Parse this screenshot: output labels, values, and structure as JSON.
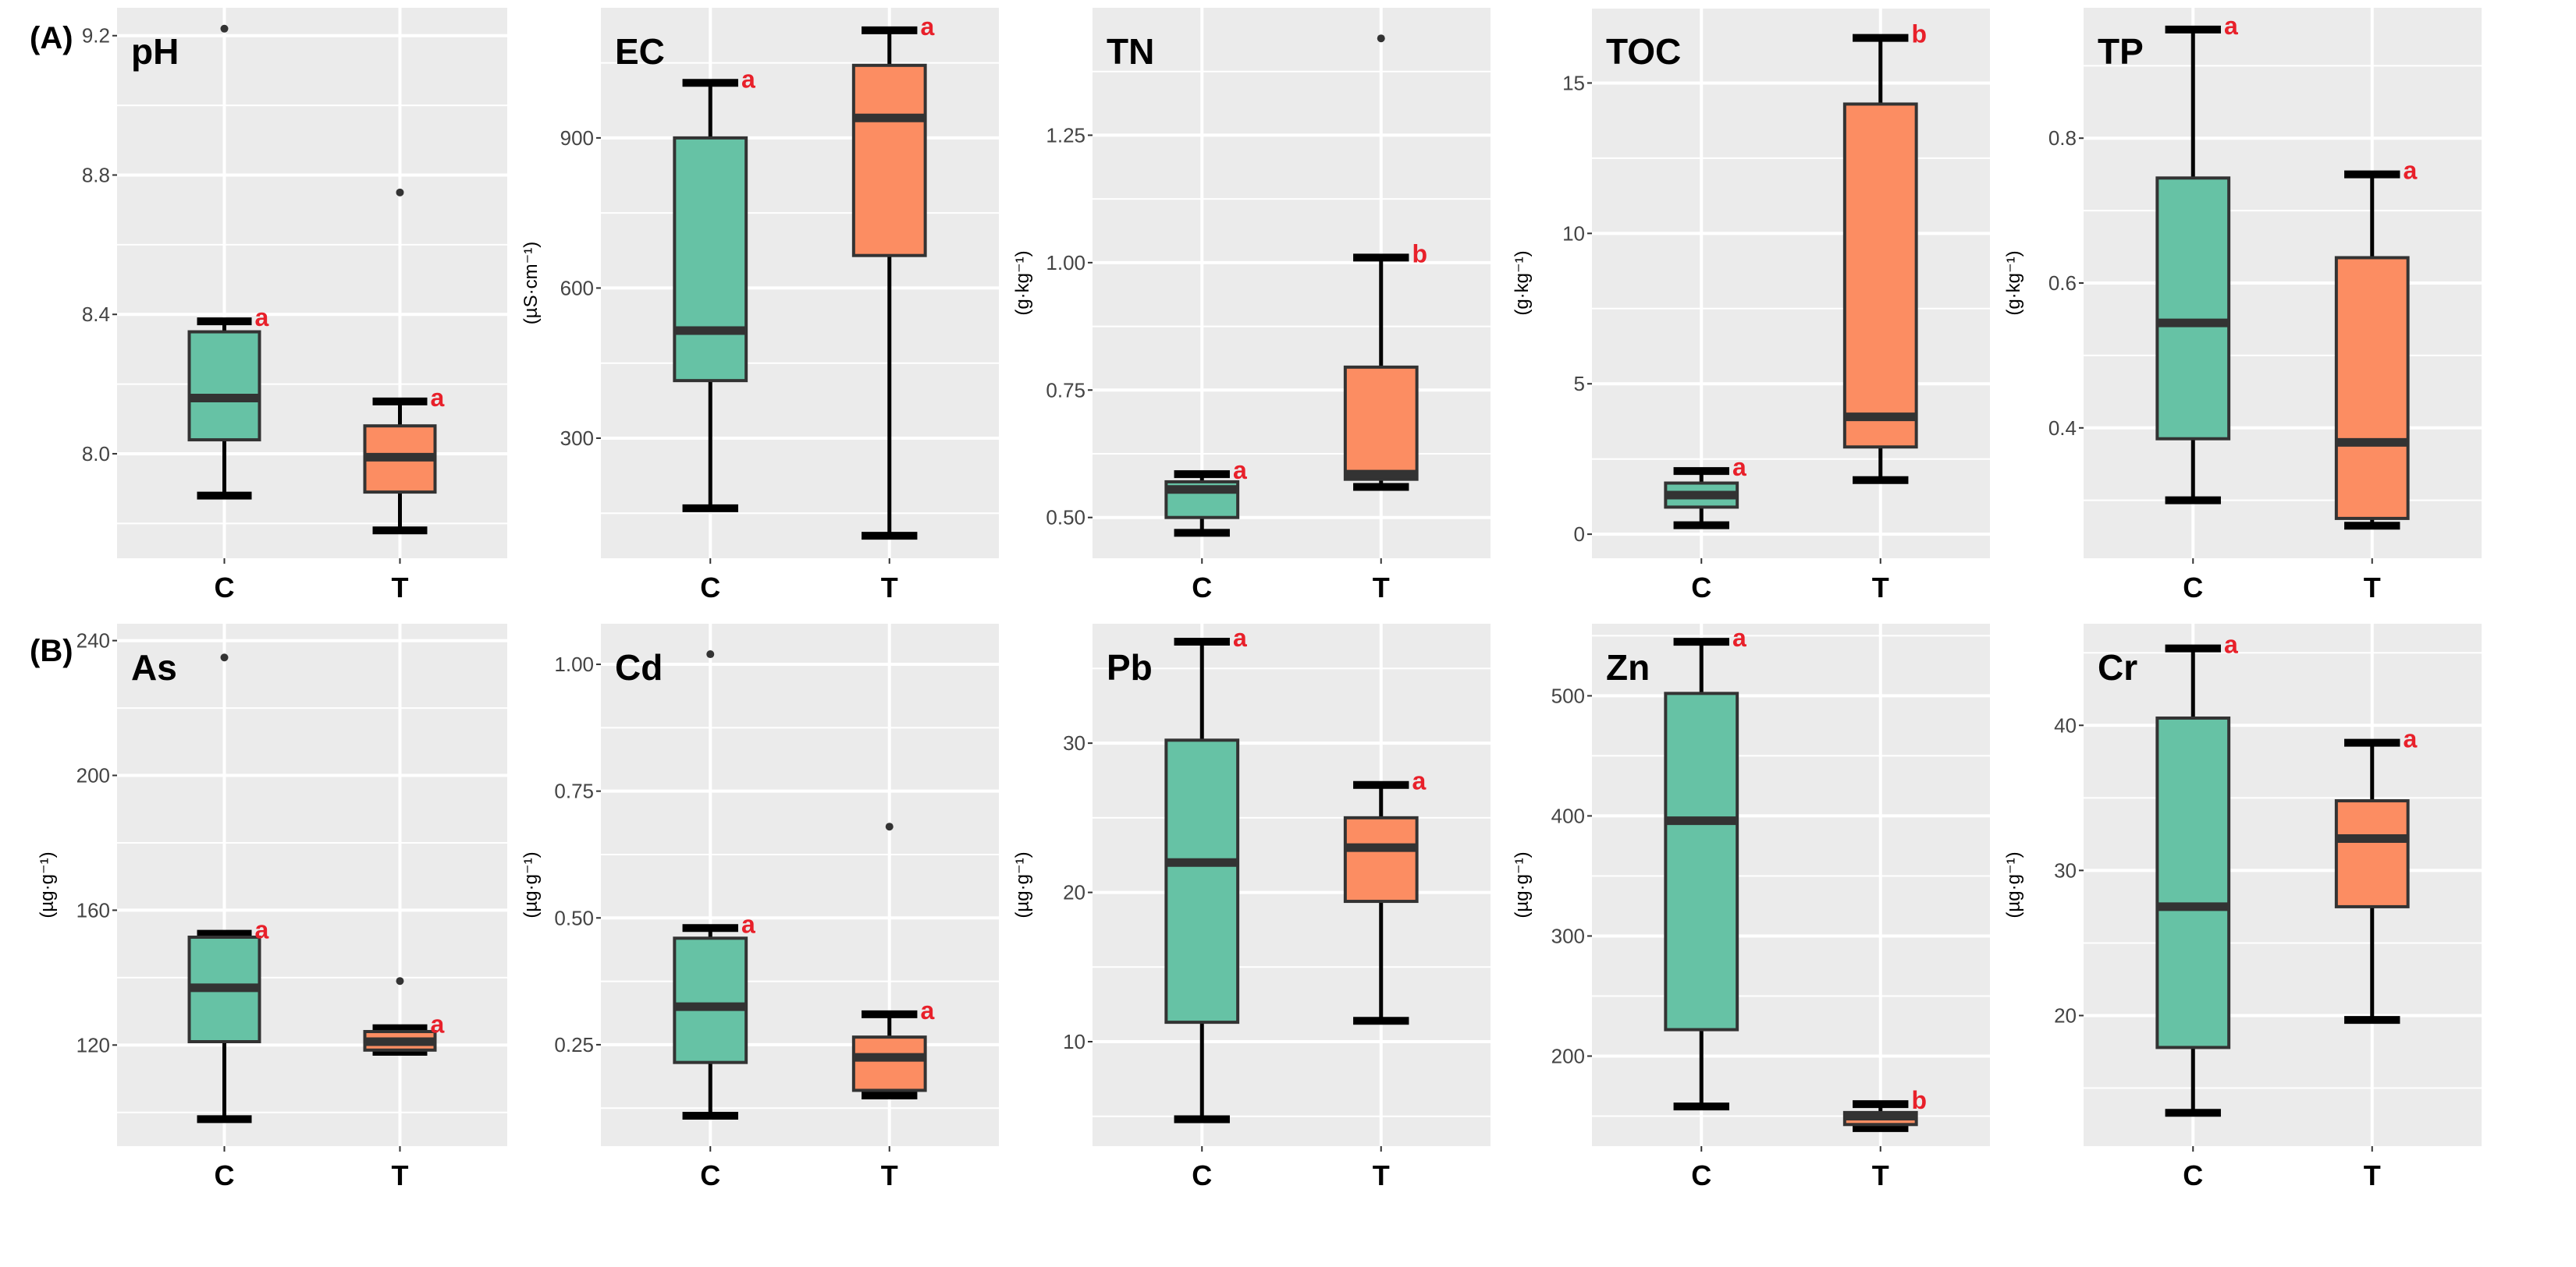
{
  "chart_data": {
    "type": "box",
    "row_labels": [
      "(A)",
      "(B)"
    ],
    "colors": {
      "C": "#66C2A5",
      "T": "#FC8D62",
      "panel_bg": "#EBEBEB",
      "letter": "#E8202A"
    },
    "categories": [
      "C",
      "T"
    ],
    "panels": [
      {
        "title": "pH",
        "ylabel": "",
        "ylim": [
          7.7,
          9.28
        ],
        "ticks": [
          "8.0",
          "8.4",
          "8.8",
          "9.2"
        ],
        "groups": [
          {
            "name": "C",
            "min": 7.88,
            "q1": 8.04,
            "median": 8.16,
            "q3": 8.35,
            "max": 8.38,
            "outliers": [
              9.22
            ],
            "letter": "a"
          },
          {
            "name": "T",
            "min": 7.78,
            "q1": 7.89,
            "median": 7.99,
            "q3": 8.08,
            "max": 8.15,
            "outliers": [
              8.75
            ],
            "letter": "a"
          }
        ]
      },
      {
        "title": "EC",
        "ylabel": "(µS·cm⁻¹)",
        "ylim": [
          60,
          1160
        ],
        "ticks": [
          "300",
          "600",
          "900"
        ],
        "groups": [
          {
            "name": "C",
            "min": 160,
            "q1": 415,
            "median": 515,
            "q3": 900,
            "max": 1010,
            "outliers": [],
            "letter": "a"
          },
          {
            "name": "T",
            "min": 105,
            "q1": 665,
            "median": 940,
            "q3": 1045,
            "max": 1115,
            "outliers": [],
            "letter": "a"
          }
        ]
      },
      {
        "title": "TN",
        "ylabel": "(g·kg⁻¹)",
        "ylim": [
          0.42,
          1.5
        ],
        "ticks": [
          "0.50",
          "0.75",
          "1.00",
          "1.25"
        ],
        "groups": [
          {
            "name": "C",
            "min": 0.47,
            "q1": 0.5,
            "median": 0.555,
            "q3": 0.57,
            "max": 0.585,
            "outliers": [],
            "letter": "a"
          },
          {
            "name": "T",
            "min": 0.56,
            "q1": 0.575,
            "median": 0.585,
            "q3": 0.795,
            "max": 1.01,
            "outliers": [
              1.44
            ],
            "letter": "b"
          }
        ]
      },
      {
        "title": "TOC",
        "ylabel": "(g·kg⁻¹)",
        "ylim": [
          -0.8,
          17.5
        ],
        "ticks": [
          "0",
          "5",
          "10",
          "15"
        ],
        "groups": [
          {
            "name": "C",
            "min": 0.3,
            "q1": 0.9,
            "median": 1.3,
            "q3": 1.7,
            "max": 2.1,
            "outliers": [],
            "letter": "a"
          },
          {
            "name": "T",
            "min": 1.8,
            "q1": 2.9,
            "median": 3.9,
            "q3": 14.3,
            "max": 16.5,
            "outliers": [],
            "letter": "b"
          }
        ]
      },
      {
        "title": "TP",
        "ylabel": "(g·kg⁻¹)",
        "ylim": [
          0.22,
          0.98
        ],
        "ticks": [
          "0.4",
          "0.6",
          "0.8"
        ],
        "groups": [
          {
            "name": "C",
            "min": 0.3,
            "q1": 0.385,
            "median": 0.545,
            "q3": 0.745,
            "max": 0.95,
            "outliers": [],
            "letter": "a"
          },
          {
            "name": "T",
            "min": 0.265,
            "q1": 0.275,
            "median": 0.38,
            "q3": 0.635,
            "max": 0.75,
            "outliers": [],
            "letter": "a"
          }
        ]
      },
      {
        "title": "As",
        "ylabel": "(µg·g⁻¹)",
        "ylim": [
          90,
          245
        ],
        "ticks": [
          "120",
          "160",
          "200",
          "240"
        ],
        "groups": [
          {
            "name": "C",
            "min": 98,
            "q1": 121,
            "median": 137,
            "q3": 152,
            "max": 153,
            "outliers": [
              235
            ],
            "letter": "a"
          },
          {
            "name": "T",
            "min": 118,
            "q1": 118.5,
            "median": 121,
            "q3": 124,
            "max": 125,
            "outliers": [
              139
            ],
            "letter": "a"
          }
        ]
      },
      {
        "title": "Cd",
        "ylabel": "(µg·g⁻¹)",
        "ylim": [
          0.05,
          1.08
        ],
        "ticks": [
          "0.25",
          "0.50",
          "0.75",
          "1.00"
        ],
        "groups": [
          {
            "name": "C",
            "min": 0.11,
            "q1": 0.215,
            "median": 0.325,
            "q3": 0.46,
            "max": 0.48,
            "outliers": [
              1.02
            ],
            "letter": "a"
          },
          {
            "name": "T",
            "min": 0.15,
            "q1": 0.16,
            "median": 0.225,
            "q3": 0.265,
            "max": 0.31,
            "outliers": [
              0.68
            ],
            "letter": "a"
          }
        ]
      },
      {
        "title": "Pb",
        "ylabel": "(µg·g⁻¹)",
        "ylim": [
          3,
          38
        ],
        "ticks": [
          "10",
          "20",
          "30"
        ],
        "groups": [
          {
            "name": "C",
            "min": 4.8,
            "q1": 11.3,
            "median": 22,
            "q3": 30.2,
            "max": 36.8,
            "outliers": [],
            "letter": "a"
          },
          {
            "name": "T",
            "min": 11.4,
            "q1": 19.4,
            "median": 23,
            "q3": 25,
            "max": 27.2,
            "outliers": [],
            "letter": "a"
          }
        ]
      },
      {
        "title": "Zn",
        "ylabel": "(µg·g⁻¹)",
        "ylim": [
          125,
          560
        ],
        "ticks": [
          "200",
          "300",
          "400",
          "500"
        ],
        "groups": [
          {
            "name": "C",
            "min": 158,
            "q1": 222,
            "median": 396,
            "q3": 502,
            "max": 545,
            "outliers": [],
            "letter": "a"
          },
          {
            "name": "T",
            "min": 140,
            "q1": 143,
            "median": 150,
            "q3": 153,
            "max": 160,
            "outliers": [],
            "letter": "b"
          }
        ]
      },
      {
        "title": "Cr",
        "ylabel": "(µg·g⁻¹)",
        "ylim": [
          11,
          47
        ],
        "ticks": [
          "20",
          "30",
          "40"
        ],
        "groups": [
          {
            "name": "C",
            "min": 13.3,
            "q1": 17.8,
            "median": 27.5,
            "q3": 40.5,
            "max": 45.3,
            "outliers": [],
            "letter": "a"
          },
          {
            "name": "T",
            "min": 19.7,
            "q1": 27.5,
            "median": 32.2,
            "q3": 34.8,
            "max": 38.8,
            "outliers": [],
            "letter": "a"
          }
        ]
      }
    ]
  }
}
